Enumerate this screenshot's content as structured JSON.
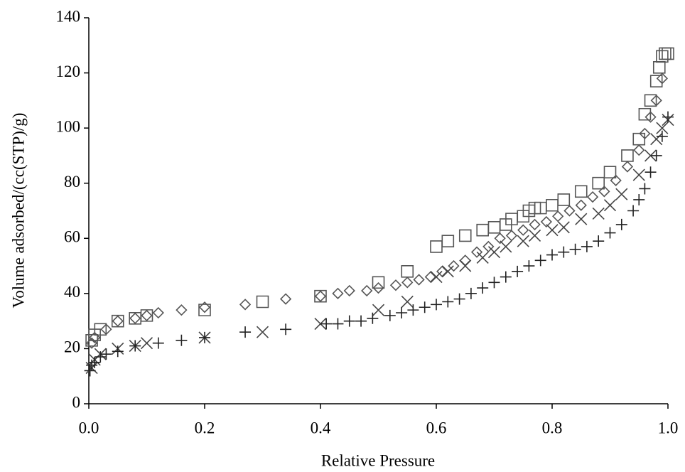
{
  "chart_data": {
    "type": "scatter",
    "x_label": "Relative Pressure",
    "y_label": "Volume adsorbed/(cc(STP)/g)",
    "xlim": [
      0,
      1
    ],
    "ylim": [
      0,
      140
    ],
    "xticks": [
      {
        "value": 0,
        "label": "0.0"
      },
      0.2,
      0.4,
      0.6,
      0.8,
      {
        "value": 1,
        "label": "1.0"
      }
    ],
    "yticks": [
      0,
      20,
      40,
      60,
      80,
      100,
      120,
      140
    ],
    "grid": false,
    "series": [
      {
        "color": "#555555",
        "marker": "square",
        "x": [
          0.005,
          0.01,
          0.02,
          0.05,
          0.08,
          0.1,
          0.2,
          0.3,
          0.4,
          0.5,
          0.55,
          0.6,
          0.62,
          0.65,
          0.68,
          0.7,
          0.72,
          0.73,
          0.75,
          0.76,
          0.77,
          0.78,
          0.8,
          0.82,
          0.85,
          0.88,
          0.9,
          0.93,
          0.95,
          0.96,
          0.97,
          0.98,
          0.985,
          0.99,
          0.995,
          1.0
        ],
        "values": [
          23,
          25,
          27,
          30,
          31,
          32,
          34,
          37,
          39,
          44,
          48,
          57,
          59,
          61,
          63,
          64,
          65,
          67,
          68,
          70,
          71,
          71,
          72,
          74,
          77,
          80,
          84,
          90,
          96,
          105,
          110,
          117,
          122,
          126,
          127,
          127
        ]
      },
      {
        "color": "#555555",
        "marker": "diamond",
        "x": [
          0.005,
          0.01,
          0.03,
          0.05,
          0.08,
          0.1,
          0.12,
          0.16,
          0.2,
          0.27,
          0.34,
          0.4,
          0.43,
          0.45,
          0.48,
          0.5,
          0.53,
          0.55,
          0.57,
          0.59,
          0.61,
          0.63,
          0.65,
          0.67,
          0.69,
          0.71,
          0.73,
          0.75,
          0.77,
          0.79,
          0.81,
          0.83,
          0.85,
          0.87,
          0.89,
          0.91,
          0.93,
          0.95,
          0.96,
          0.97,
          0.98,
          0.99
        ],
        "values": [
          22,
          24,
          27,
          30,
          31,
          32,
          33,
          34,
          35,
          36,
          38,
          39,
          40,
          41,
          41,
          42,
          43,
          44,
          45,
          46,
          48,
          50,
          52,
          55,
          57,
          60,
          61,
          63,
          65,
          66,
          68,
          70,
          72,
          75,
          77,
          81,
          86,
          92,
          98,
          104,
          110,
          118
        ]
      },
      {
        "color": "#444444",
        "marker": "x",
        "x": [
          0.005,
          0.01,
          0.02,
          0.05,
          0.08,
          0.1,
          0.2,
          0.3,
          0.4,
          0.5,
          0.55,
          0.6,
          0.62,
          0.65,
          0.68,
          0.7,
          0.72,
          0.75,
          0.77,
          0.8,
          0.82,
          0.85,
          0.88,
          0.9,
          0.92,
          0.95,
          0.97,
          0.98,
          0.99,
          1.0
        ],
        "values": [
          13,
          16,
          18,
          20,
          21,
          22,
          24,
          26,
          29,
          34,
          37,
          46,
          48,
          50,
          53,
          55,
          57,
          59,
          61,
          63,
          64,
          67,
          69,
          72,
          76,
          83,
          90,
          96,
          100,
          103
        ]
      },
      {
        "color": "#222222",
        "marker": "plus",
        "x": [
          0.002,
          0.005,
          0.01,
          0.02,
          0.03,
          0.05,
          0.08,
          0.12,
          0.16,
          0.2,
          0.27,
          0.34,
          0.41,
          0.43,
          0.45,
          0.47,
          0.49,
          0.52,
          0.54,
          0.56,
          0.58,
          0.6,
          0.62,
          0.64,
          0.66,
          0.68,
          0.7,
          0.72,
          0.74,
          0.76,
          0.78,
          0.8,
          0.82,
          0.84,
          0.86,
          0.88,
          0.9,
          0.92,
          0.94,
          0.95,
          0.96,
          0.97,
          0.98,
          0.99,
          1.0
        ],
        "values": [
          12,
          14,
          15,
          17,
          18,
          19,
          21,
          22,
          23,
          24,
          26,
          27,
          29,
          29,
          30,
          30,
          31,
          32,
          33,
          34,
          35,
          36,
          37,
          38,
          40,
          42,
          44,
          46,
          48,
          50,
          52,
          54,
          55,
          56,
          57,
          59,
          62,
          65,
          70,
          74,
          78,
          84,
          90,
          97,
          104
        ]
      }
    ]
  }
}
